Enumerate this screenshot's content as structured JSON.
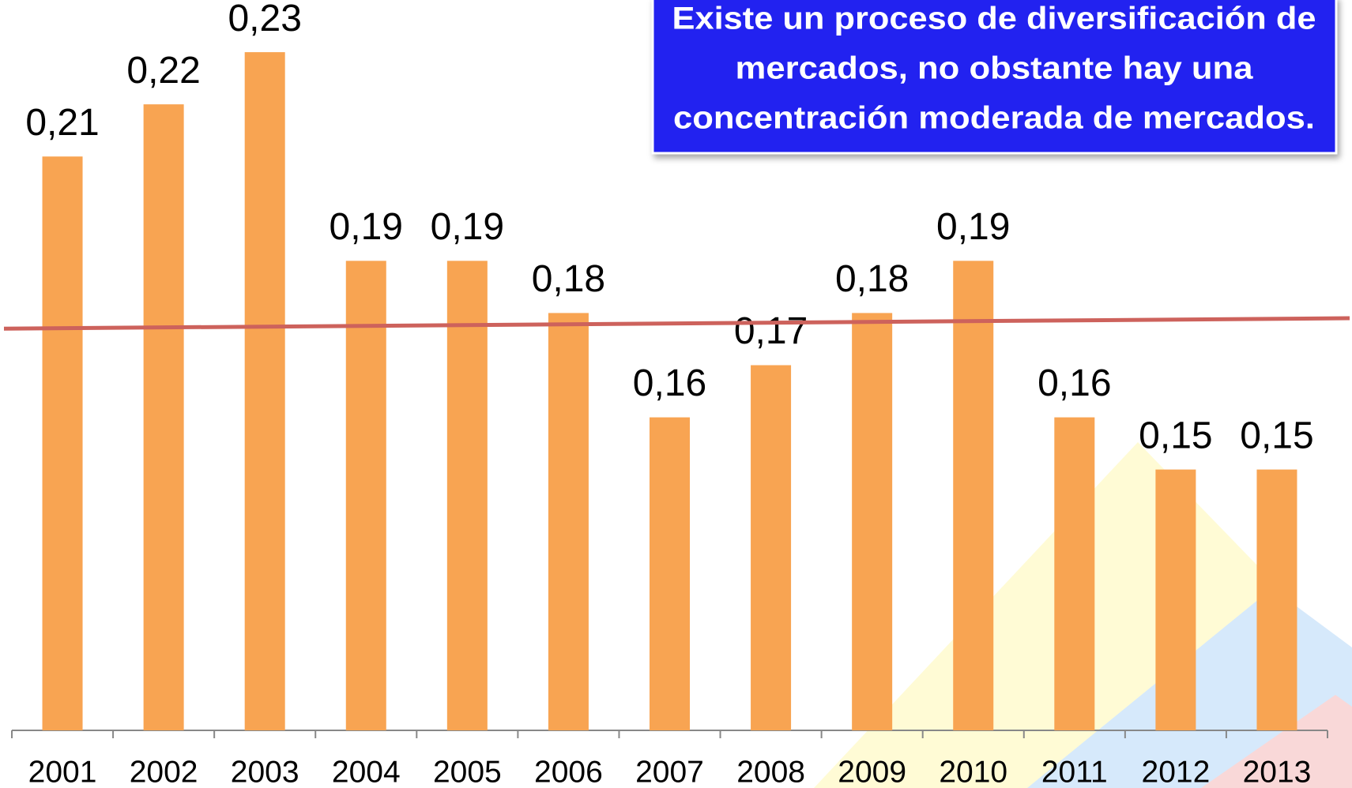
{
  "chart_data": {
    "type": "bar",
    "categories": [
      "2001",
      "2002",
      "2003",
      "2004",
      "2005",
      "2006",
      "2007",
      "2008",
      "2009",
      "2010",
      "2011",
      "2012",
      "2013"
    ],
    "values": [
      0.21,
      0.22,
      0.23,
      0.19,
      0.19,
      0.18,
      0.16,
      0.17,
      0.18,
      0.19,
      0.16,
      0.15,
      0.15
    ],
    "value_labels": [
      "0,21",
      "0,22",
      "0,23",
      "0,19",
      "0,19",
      "0,18",
      "0,16",
      "0,17",
      "0,18",
      "0,19",
      "0,16",
      "0,15",
      "0,15"
    ],
    "color": "#f8a452",
    "ylim": [
      0.1,
      0.24
    ],
    "trendline": {
      "color": "#cd625c",
      "values": [
        0.177,
        0.179
      ]
    },
    "annotation": {
      "lines": [
        "Existe un proceso de diversificación de",
        "mercados, no obstante hay una",
        "concentración moderada de mercados."
      ],
      "color": "#2424f0"
    }
  }
}
